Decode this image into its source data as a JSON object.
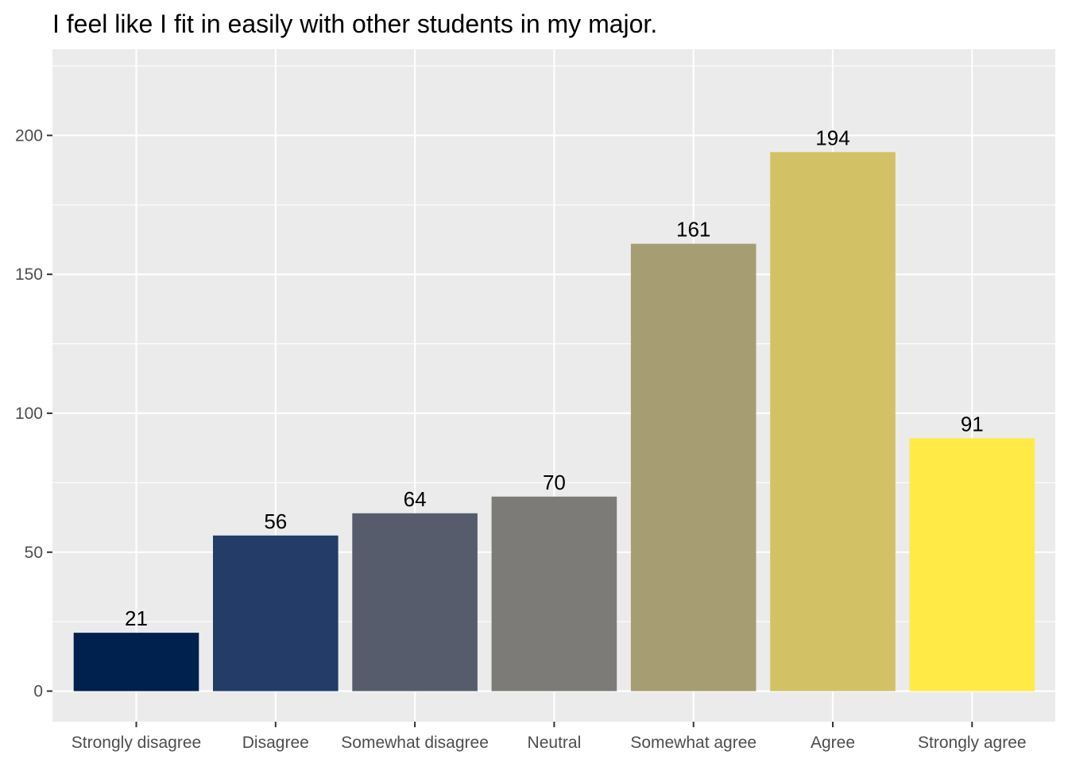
{
  "chart_data": {
    "type": "bar",
    "title": "I feel like I fit in easily with other students in my major.",
    "xlabel": "",
    "ylabel": "",
    "categories": [
      "Strongly disagree",
      "Disagree",
      "Somewhat disagree",
      "Neutral",
      "Somewhat agree",
      "Agree",
      "Strongly agree"
    ],
    "values": [
      21,
      56,
      64,
      70,
      161,
      194,
      91
    ],
    "colors": [
      "#00204D",
      "#233C68",
      "#575C6D",
      "#7C7B78",
      "#A69D73",
      "#D3C165",
      "#FFEA46"
    ],
    "ylim": [
      -11,
      231
    ],
    "yticks": [
      0,
      50,
      100,
      150,
      200
    ],
    "grid": true,
    "legend": "none",
    "panel_background": "#EBEBEB",
    "gridline_color": "#FFFFFF"
  }
}
